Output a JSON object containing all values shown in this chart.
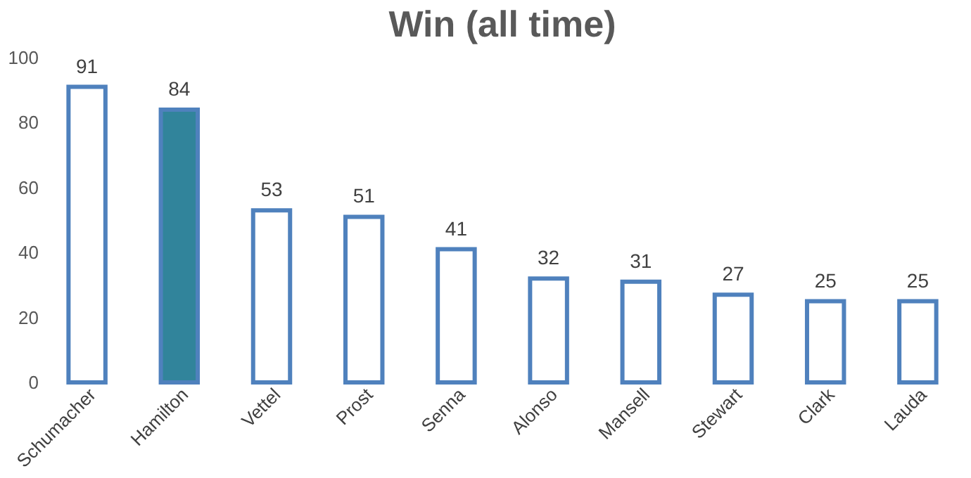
{
  "chart_data": {
    "type": "bar",
    "title": "Win (all time)",
    "categories": [
      "Schumacher",
      "Hamilton",
      "Vettel",
      "Prost",
      "Senna",
      "Alonso",
      "Mansell",
      "Stewart",
      "Clark",
      "Lauda"
    ],
    "values": [
      91,
      84,
      53,
      51,
      41,
      32,
      31,
      27,
      25,
      25
    ],
    "color": "#4f81bd",
    "colors": [
      "#ffffff",
      "#31849b",
      "#ffffff",
      "#ffffff",
      "#ffffff",
      "#ffffff",
      "#ffffff",
      "#ffffff",
      "#ffffff",
      "#ffffff"
    ],
    "ylim": [
      0,
      100
    ],
    "yticks": [
      0,
      20,
      40,
      60,
      80,
      100
    ],
    "grid": false,
    "data_labels": true
  }
}
